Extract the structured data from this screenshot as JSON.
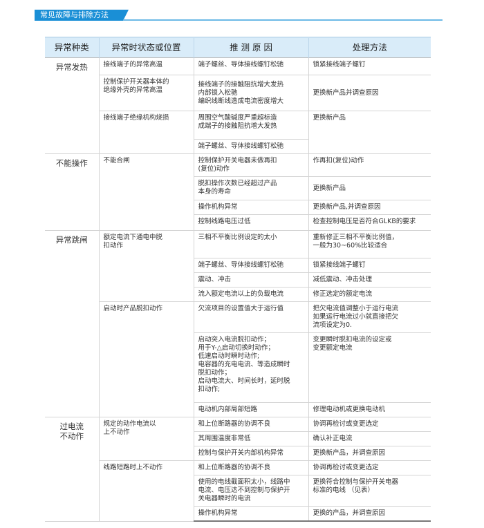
{
  "section_title": "常见故障与排除方法",
  "colors": {
    "accent": "#1a8fd6",
    "header_bg": "#d9ecf9"
  },
  "table": {
    "headers": [
      "异常种类",
      "异常时状态或位置",
      "推 测 原 因",
      "处理方法"
    ],
    "groups": [
      {
        "category": "异常发热",
        "subgroups": [
          {
            "state": "接线端子的异常高温",
            "rows": [
              {
                "cause": "端子螺丝、导体接线螺钉松驰",
                "solution": "锁紧接线端子螺钉"
              }
            ]
          },
          {
            "state": "控制保护开关器本体的\n绝缘外壳的异常高温",
            "rows": [
              {
                "cause": "接线端子的接触阻抗增大发热\n内部锁入松驰\n编织线断线造成电流密度增大",
                "solution": "更换新产品并调查原因",
                "mid": true
              }
            ]
          },
          {
            "state": "接线端子绝缘机构烧损",
            "rows": [
              {
                "cause": "周围空气酸碱度严重超标造\n成端子的接触阻抗增大发热",
                "solution": "更换新产品",
                "span": 2
              },
              {
                "cause": "端子螺丝、导体接线螺钉松驰"
              }
            ]
          }
        ]
      },
      {
        "category": "不能操作",
        "subgroups": [
          {
            "state": "不能合闸",
            "rows": [
              {
                "cause": "控制保护开关电器未做再扣\n(复位)动作",
                "solution": "作再扣(复位)动作"
              },
              {
                "cause": "脱扣操作次数已经超过产品\n本身的寿命",
                "solution": "更换新产品",
                "mid": true
              },
              {
                "cause": "操作机构异常",
                "solution": "更换新产品,并调查原因"
              },
              {
                "cause": "控制线路电压过低",
                "solution": "检查控制电压是否符合GLKB的要求"
              }
            ]
          }
        ]
      },
      {
        "category": "异常跳闸",
        "subgroups": [
          {
            "state": "额定电流下通电中脱\n扣动作",
            "rows": [
              {
                "cause": "三相不平衡比例设定的太小",
                "solution": "重新修正三相不平衡比例值，\n一般为30~60%比较适合"
              },
              {
                "cause": "端子螺丝、导体接线螺钉松驰",
                "solution": "锁紧接线端子螺钉"
              },
              {
                "cause": "震动、冲击",
                "solution": "减低震动、冲击处理"
              },
              {
                "cause": "流入额定电流以上的负载电流",
                "solution": "修正选定的额定电流"
              }
            ]
          },
          {
            "state": "启动时产品脱扣动作",
            "rows": [
              {
                "cause": "欠流项目的设置值大于运行值",
                "solution": "把欠电流值调整小于运行电流\n如果运行电流过小就直接把欠\n流项设定为0."
              },
              {
                "cause": "启动突入电流脱扣动作；\n用于Y-△启动切换时动作；\n低速启动时瞬时动作;\n电容器的充电电流、等造成瞬时\n脱扣动作；\n启动电流大、时间长时，延时脱\n扣动作;",
                "solution": "变更瞬时脱扣电流的设定或\n变更额定电流"
              },
              {
                "cause": "电动机内部局部短路",
                "solution": "修理电动机或更换电动机"
              }
            ]
          }
        ]
      },
      {
        "category": "过电流\n不动作",
        "subgroups": [
          {
            "state": "规定的动作电流以\n上不动作",
            "rows": [
              {
                "cause": "和上位断路器的协调不良",
                "solution": "协调再检讨或变更选定"
              },
              {
                "cause": "其周围温度非常低",
                "solution": "确认补正电流"
              },
              {
                "cause": "控制与保护开关内部机构异常",
                "solution": "更换新产品，并调查原因"
              }
            ]
          },
          {
            "state": "线路短路时上不动作",
            "rows": [
              {
                "cause": "和上位断路器的协调不良",
                "solution": "协调再检讨或变更选定"
              },
              {
                "cause": "使用的电线截面积太小，线路中\n电流、电压达不到控制与保护开\n关电器瞬时的电流",
                "solution": "更换符合控制与保护开关电器\n标准的电线  （见表）"
              },
              {
                "cause": "操作机构异常",
                "solution": "更换的产品，并调查原因"
              }
            ]
          }
        ]
      }
    ]
  }
}
